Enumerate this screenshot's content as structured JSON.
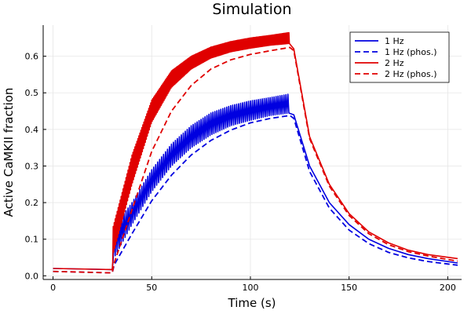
{
  "chart_data": {
    "type": "line",
    "title": "Simulation",
    "xlabel": "Time (s)",
    "ylabel": "Active CaMKII fraction",
    "xlim": [
      -5,
      207
    ],
    "ylim": [
      -0.01,
      0.685
    ],
    "xticks": [
      0,
      50,
      100,
      150,
      200
    ],
    "yticks": [
      0.0,
      0.1,
      0.2,
      0.3,
      0.4,
      0.5,
      0.6
    ],
    "ytick_labels": [
      "0.0",
      "0.1",
      "0.2",
      "0.3",
      "0.4",
      "0.5",
      "0.6"
    ],
    "grid": true,
    "legend_position": "top-right",
    "stimulus": {
      "start": 30,
      "end": 120
    },
    "series": [
      {
        "name": "1 Hz",
        "color": "#0000e0",
        "dash": "solid",
        "oscillation_hz": 1,
        "x": [
          0,
          30,
          30.5,
          40,
          50,
          60,
          70,
          80,
          90,
          100,
          110,
          120,
          122,
          130,
          140,
          150,
          160,
          170,
          180,
          190,
          205
        ],
        "y_low": [
          0.02,
          0.017,
          0.045,
          0.14,
          0.23,
          0.3,
          0.35,
          0.385,
          0.41,
          0.425,
          0.438,
          0.445,
          0.44,
          0.3,
          0.2,
          0.14,
          0.1,
          0.075,
          0.058,
          0.047,
          0.035
        ],
        "y_high": [
          0.02,
          0.017,
          0.13,
          0.2,
          0.29,
          0.36,
          0.41,
          0.445,
          0.465,
          0.478,
          0.487,
          0.497,
          0.44,
          0.3,
          0.2,
          0.14,
          0.1,
          0.075,
          0.058,
          0.047,
          0.035
        ]
      },
      {
        "name": "1 Hz (phos.)",
        "color": "#0000e0",
        "dash": "dashed",
        "x": [
          0,
          30,
          31,
          40,
          50,
          60,
          70,
          80,
          90,
          100,
          110,
          120,
          122,
          130,
          140,
          150,
          160,
          170,
          180,
          190,
          205
        ],
        "y": [
          0.012,
          0.008,
          0.03,
          0.115,
          0.205,
          0.275,
          0.33,
          0.37,
          0.398,
          0.418,
          0.43,
          0.438,
          0.43,
          0.285,
          0.185,
          0.125,
          0.088,
          0.064,
          0.049,
          0.039,
          0.029
        ]
      },
      {
        "name": "2 Hz",
        "color": "#e00000",
        "dash": "solid",
        "oscillation_hz": 2,
        "x": [
          0,
          30,
          30.5,
          40,
          50,
          60,
          70,
          80,
          90,
          100,
          110,
          120,
          122,
          130,
          140,
          150,
          160,
          170,
          180,
          190,
          205
        ],
        "y_low": [
          0.02,
          0.017,
          0.06,
          0.25,
          0.42,
          0.515,
          0.565,
          0.595,
          0.612,
          0.622,
          0.63,
          0.635,
          0.62,
          0.38,
          0.25,
          0.17,
          0.12,
          0.09,
          0.07,
          0.058,
          0.047
        ],
        "y_high": [
          0.02,
          0.017,
          0.135,
          0.33,
          0.48,
          0.56,
          0.6,
          0.625,
          0.64,
          0.65,
          0.657,
          0.665,
          0.62,
          0.38,
          0.25,
          0.17,
          0.12,
          0.09,
          0.07,
          0.058,
          0.047
        ]
      },
      {
        "name": "2 Hz (phos.)",
        "color": "#e00000",
        "dash": "dashed",
        "x": [
          0,
          30,
          31,
          40,
          50,
          60,
          70,
          80,
          90,
          100,
          110,
          120,
          122,
          130,
          140,
          150,
          160,
          170,
          180,
          190,
          205
        ],
        "y": [
          0.012,
          0.008,
          0.035,
          0.18,
          0.34,
          0.45,
          0.52,
          0.565,
          0.59,
          0.605,
          0.615,
          0.624,
          0.615,
          0.375,
          0.245,
          0.165,
          0.115,
          0.085,
          0.066,
          0.054,
          0.04
        ]
      }
    ]
  }
}
